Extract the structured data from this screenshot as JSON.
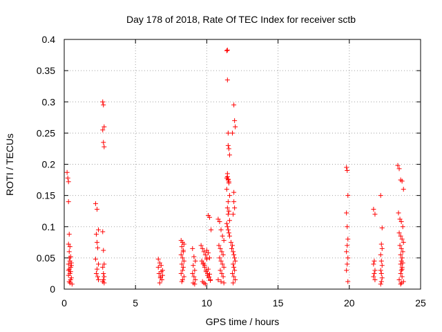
{
  "chart_data": {
    "type": "scatter",
    "title": "Day 178 of 2018, Rate Of TEC Index for receiver sctb",
    "xlabel": "GPS time / hours",
    "ylabel": "ROTI / TECUs",
    "xlim": [
      0,
      25
    ],
    "ylim": [
      0,
      0.4
    ],
    "xticks": [
      "0",
      "5",
      "10",
      "15",
      "20",
      "25"
    ],
    "yticks": [
      "0",
      "0.05",
      "0.1",
      "0.15",
      "0.2",
      "0.25",
      "0.3",
      "0.35",
      "0.4"
    ],
    "grid": true,
    "marker": "+",
    "color": "#ff0000",
    "series": [
      {
        "name": "ROTI",
        "x": [
          0.2,
          0.25,
          0.3,
          0.3,
          0.35,
          0.3,
          0.4,
          0.35,
          0.45,
          0.4,
          0.3,
          0.5,
          0.35,
          0.45,
          0.4,
          0.3,
          0.5,
          0.45,
          0.35,
          0.4,
          0.55,
          0.3,
          0.45,
          0.5,
          0.35,
          2.2,
          2.3,
          2.4,
          2.25,
          2.3,
          2.35,
          2.2,
          2.4,
          2.3,
          2.25,
          2.35,
          2.4,
          2.7,
          2.75,
          2.8,
          2.7,
          2.75,
          2.8,
          2.7,
          2.75,
          2.8,
          2.7,
          2.75,
          2.8,
          2.75,
          2.7,
          2.8,
          6.6,
          6.7,
          6.8,
          6.9,
          6.65,
          6.75,
          6.85,
          6.7,
          6.8,
          6.6,
          6.9,
          6.75,
          8.2,
          8.3,
          8.4,
          8.25,
          8.35,
          8.2,
          8.3,
          8.4,
          8.25,
          8.35,
          8.3,
          8.2,
          8.4,
          8.3,
          8.25,
          8.35,
          9.0,
          9.1,
          9.2,
          9.05,
          9.15,
          9.0,
          9.1,
          9.2,
          9.05,
          9.15,
          9.6,
          9.7,
          9.8,
          9.9,
          10.0,
          10.1,
          10.2,
          10.3,
          9.65,
          9.75,
          9.85,
          9.95,
          10.05,
          10.15,
          10.25,
          9.7,
          9.8,
          9.9,
          10.0,
          10.1,
          10.2,
          9.75,
          9.85,
          9.95,
          10.05,
          10.15,
          10.25,
          10.0,
          10.1,
          10.2,
          10.8,
          10.9,
          11.0,
          11.1,
          11.2,
          10.85,
          10.95,
          11.05,
          11.15,
          10.9,
          11.0,
          11.1,
          11.2,
          10.95,
          11.05,
          11.15,
          10.8,
          11.0,
          11.2,
          11.4,
          11.45,
          11.5,
          11.55,
          11.6,
          11.45,
          11.5,
          11.55,
          11.4,
          11.6,
          11.5,
          11.45,
          11.55,
          11.5,
          11.6,
          11.4,
          11.45,
          11.5,
          11.55,
          11.6,
          11.7,
          11.8,
          11.75,
          11.85,
          11.9,
          11.95,
          12.0,
          11.85,
          11.9,
          11.95,
          11.8,
          11.9,
          12.0,
          11.85,
          11.9,
          11.95,
          12.0,
          11.8,
          11.9,
          11.95,
          11.85,
          11.9,
          11.45,
          11.5,
          11.45,
          11.4,
          11.5,
          11.55,
          19.8,
          19.85,
          19.9,
          19.8,
          19.85,
          19.9,
          19.85,
          19.8,
          19.9,
          19.85,
          19.8,
          19.9,
          21.7,
          21.8,
          21.75,
          21.7,
          21.8,
          21.75,
          21.7,
          21.8,
          22.2,
          22.3,
          22.25,
          22.3,
          22.2,
          22.25,
          22.3,
          22.2,
          22.25,
          22.3,
          22.25,
          22.2,
          23.4,
          23.5,
          23.6,
          23.7,
          23.8,
          23.45,
          23.55,
          23.65,
          23.75,
          23.5,
          23.6,
          23.7,
          23.8,
          23.55,
          23.65,
          23.75,
          23.6,
          23.7,
          23.65,
          23.6,
          23.7,
          23.65,
          23.6,
          23.7,
          23.5,
          23.8,
          23.65,
          23.6,
          23.7,
          23.75
        ],
        "y": [
          0.187,
          0.178,
          0.172,
          0.14,
          0.088,
          0.072,
          0.068,
          0.06,
          0.052,
          0.045,
          0.04,
          0.038,
          0.032,
          0.028,
          0.025,
          0.022,
          0.018,
          0.015,
          0.012,
          0.01,
          0.008,
          0.03,
          0.035,
          0.042,
          0.05,
          0.137,
          0.128,
          0.095,
          0.088,
          0.075,
          0.066,
          0.048,
          0.04,
          0.032,
          0.025,
          0.02,
          0.015,
          0.3,
          0.295,
          0.26,
          0.255,
          0.235,
          0.228,
          0.092,
          0.062,
          0.04,
          0.035,
          0.025,
          0.02,
          0.015,
          0.012,
          0.01,
          0.048,
          0.042,
          0.038,
          0.03,
          0.025,
          0.02,
          0.015,
          0.01,
          0.028,
          0.035,
          0.022,
          0.018,
          0.078,
          0.075,
          0.072,
          0.068,
          0.062,
          0.055,
          0.05,
          0.045,
          0.04,
          0.035,
          0.03,
          0.025,
          0.02,
          0.015,
          0.012,
          0.06,
          0.065,
          0.052,
          0.045,
          0.038,
          0.03,
          0.025,
          0.02,
          0.015,
          0.01,
          0.008,
          0.07,
          0.065,
          0.06,
          0.055,
          0.05,
          0.118,
          0.115,
          0.095,
          0.045,
          0.04,
          0.035,
          0.03,
          0.025,
          0.02,
          0.015,
          0.012,
          0.01,
          0.008,
          0.062,
          0.058,
          0.05,
          0.042,
          0.038,
          0.028,
          0.022,
          0.018,
          0.014,
          0.048,
          0.032,
          0.024,
          0.112,
          0.108,
          0.095,
          0.085,
          0.078,
          0.07,
          0.065,
          0.06,
          0.055,
          0.05,
          0.045,
          0.04,
          0.035,
          0.03,
          0.025,
          0.02,
          0.015,
          0.012,
          0.01,
          0.382,
          0.335,
          0.23,
          0.225,
          0.215,
          0.18,
          0.175,
          0.17,
          0.16,
          0.15,
          0.14,
          0.13,
          0.125,
          0.12,
          0.11,
          0.105,
          0.1,
          0.095,
          0.09,
          0.085,
          0.075,
          0.07,
          0.065,
          0.06,
          0.055,
          0.05,
          0.045,
          0.04,
          0.035,
          0.03,
          0.025,
          0.02,
          0.015,
          0.01,
          0.295,
          0.27,
          0.26,
          0.25,
          0.14,
          0.13,
          0.12,
          0.155,
          0.383,
          0.25,
          0.185,
          0.178,
          0.176,
          0.172,
          0.195,
          0.19,
          0.15,
          0.122,
          0.1,
          0.08,
          0.07,
          0.06,
          0.05,
          0.04,
          0.03,
          0.012,
          0.128,
          0.12,
          0.045,
          0.04,
          0.03,
          0.025,
          0.02,
          0.015,
          0.15,
          0.098,
          0.072,
          0.065,
          0.055,
          0.045,
          0.038,
          0.03,
          0.025,
          0.018,
          0.012,
          0.008,
          0.198,
          0.193,
          0.175,
          0.173,
          0.16,
          0.122,
          0.112,
          0.108,
          0.1,
          0.09,
          0.085,
          0.08,
          0.075,
          0.07,
          0.065,
          0.06,
          0.055,
          0.05,
          0.045,
          0.04,
          0.035,
          0.03,
          0.025,
          0.02,
          0.015,
          0.012,
          0.01,
          0.008,
          0.032,
          0.042
        ]
      }
    ]
  }
}
